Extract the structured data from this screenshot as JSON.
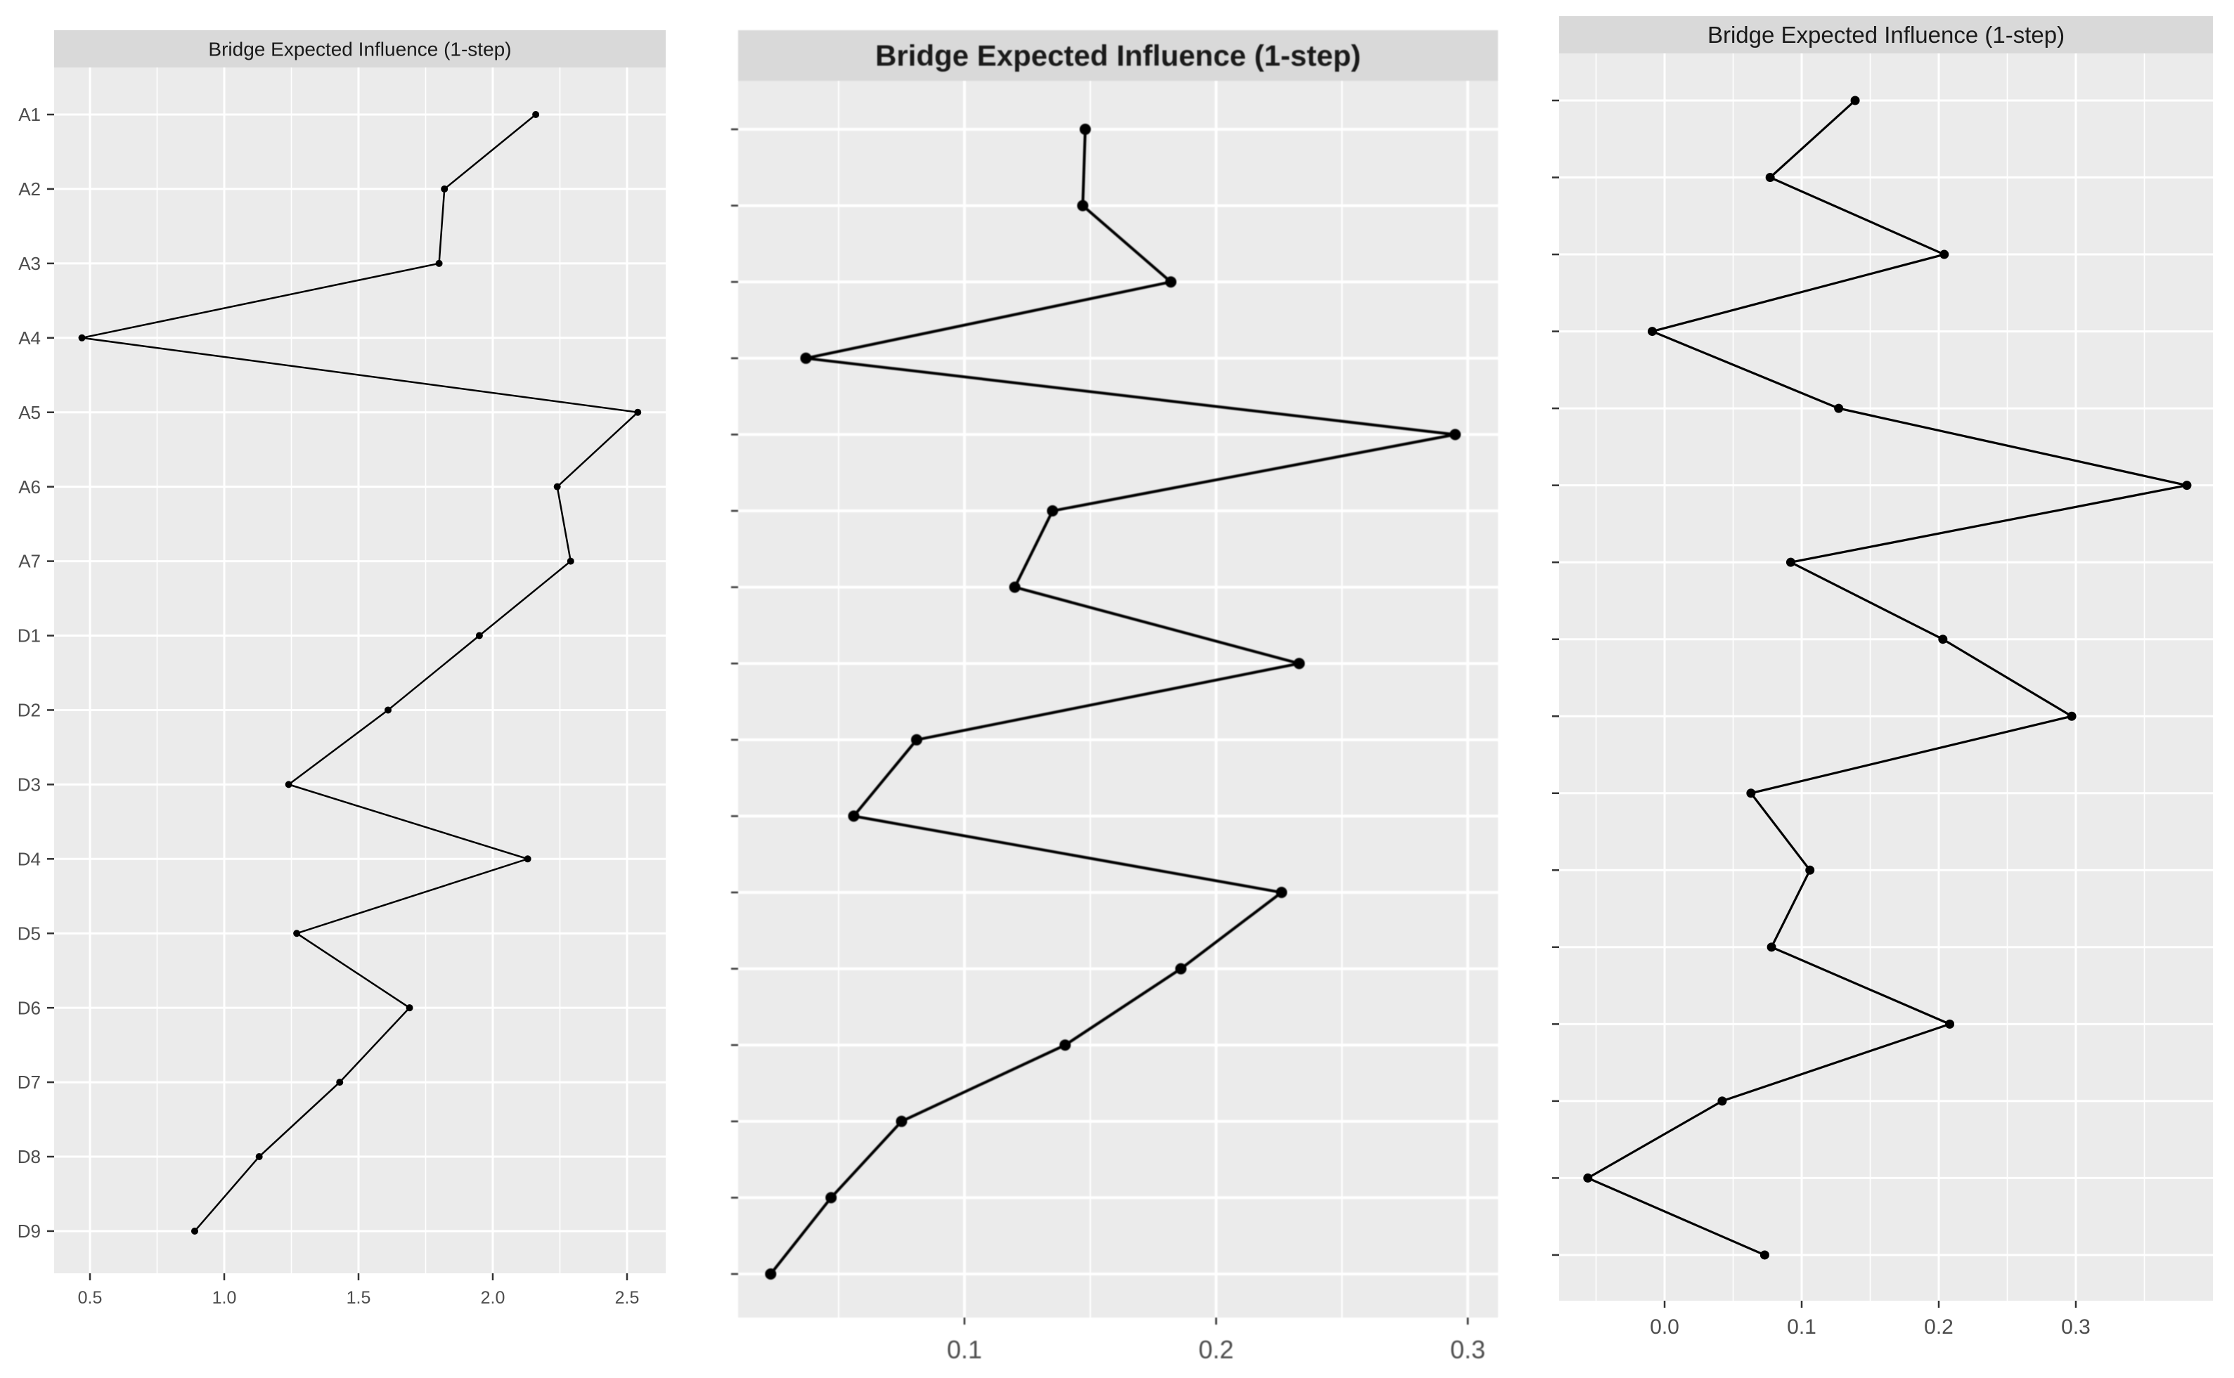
{
  "page": {
    "background": "#ffffff"
  },
  "styles": {
    "strip_bg": "#d9d9d9",
    "panel_bg": "#ebebeb",
    "grid_color": "#ffffff",
    "line_color": "#000000",
    "point_color": "#000000",
    "tick_color": "#333333",
    "axis_text_color": "#4d4d4d",
    "title_color": "#1a1a1a"
  },
  "chart_data": [
    {
      "type": "line",
      "panel": "left",
      "title": "Bridge Expected Influence (1-step)",
      "orientation": "categories-on-y-values-on-x",
      "categories": [
        "A1",
        "A2",
        "A3",
        "A4",
        "A5",
        "A6",
        "A7",
        "D1",
        "D2",
        "D3",
        "D4",
        "D5",
        "D6",
        "D7",
        "D8",
        "D9"
      ],
      "values": [
        2.16,
        1.82,
        1.8,
        0.47,
        2.54,
        2.24,
        2.29,
        1.95,
        1.61,
        1.24,
        2.13,
        1.27,
        1.69,
        1.43,
        1.13,
        0.89
      ],
      "x_ticks": [
        0.5,
        1.0,
        1.5,
        2.0,
        2.5
      ],
      "x_tick_labels": [
        "0.5",
        "1.0",
        "1.5",
        "2.0",
        "2.5"
      ],
      "x_minor_ticks": [
        0.75,
        1.25,
        1.75,
        2.25
      ],
      "xlim": [
        0.367,
        2.643
      ],
      "y_labels_shown": true,
      "grid": true,
      "legend": "none"
    },
    {
      "type": "line",
      "panel": "middle",
      "title": "Bridge Expected Influence (1-step)",
      "orientation": "categories-on-y-values-on-x",
      "categories": [
        "A1",
        "A2",
        "A3",
        "A4",
        "A5",
        "A6",
        "A7",
        "D1",
        "D2",
        "D3",
        "D4",
        "D5",
        "D6",
        "D7",
        "D8",
        "D9"
      ],
      "values": [
        0.148,
        0.147,
        0.182,
        0.037,
        0.295,
        0.135,
        0.12,
        0.233,
        0.081,
        0.056,
        0.226,
        0.186,
        0.14,
        0.075,
        0.047,
        0.023
      ],
      "x_ticks": [
        0.1,
        0.2,
        0.3
      ],
      "x_tick_labels": [
        "0.1",
        "0.2",
        "0.3"
      ],
      "x_minor_ticks": [
        0.05,
        0.15,
        0.25
      ],
      "xlim": [
        0.01,
        0.312
      ],
      "y_labels_shown": false,
      "grid": true,
      "legend": "none"
    },
    {
      "type": "line",
      "panel": "right",
      "title": "Bridge Expected Influence (1-step)",
      "orientation": "categories-on-y-values-on-x",
      "categories": [
        "A1",
        "A2",
        "A3",
        "A4",
        "A5",
        "A6",
        "A7",
        "D1",
        "D2",
        "D3",
        "D4",
        "D5",
        "D6",
        "D7",
        "D8",
        "D9"
      ],
      "values": [
        0.139,
        0.077,
        0.204,
        -0.009,
        0.127,
        0.381,
        0.092,
        0.203,
        0.297,
        0.063,
        0.106,
        0.078,
        0.208,
        0.042,
        -0.056,
        0.073
      ],
      "x_ticks": [
        0.0,
        0.1,
        0.2,
        0.3
      ],
      "x_tick_labels": [
        "0.0",
        "0.1",
        "0.2",
        "0.3"
      ],
      "x_minor_ticks": [
        -0.05,
        0.05,
        0.15,
        0.25,
        0.35
      ],
      "xlim": [
        -0.076,
        0.403
      ],
      "y_labels_shown": false,
      "grid": true,
      "legend": "none"
    }
  ]
}
